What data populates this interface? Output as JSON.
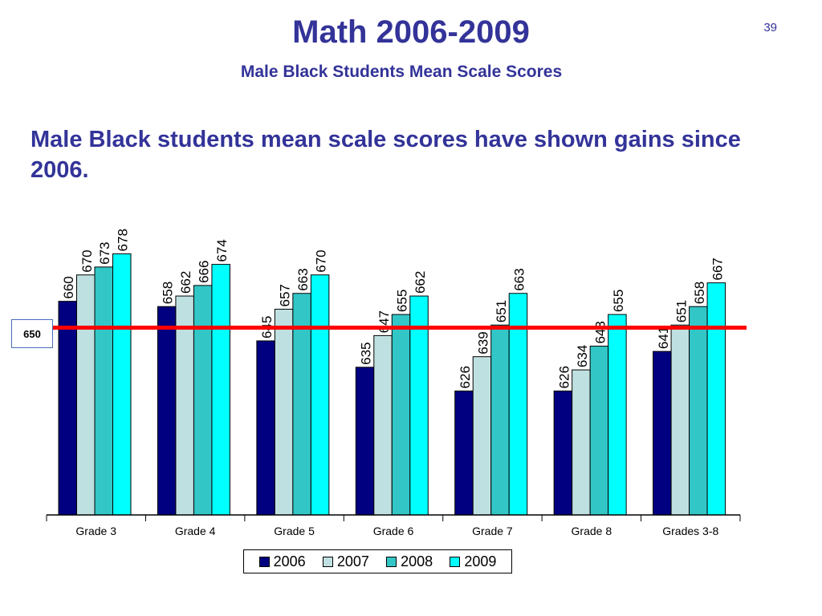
{
  "slide": {
    "title": "Math 2006-2009",
    "subtitle": "Male Black Students Mean Scale Scores",
    "number": "39",
    "headline": "Male Black students mean scale scores have shown gains since 2006."
  },
  "chart_data": {
    "type": "bar",
    "title": "",
    "xlabel": "",
    "ylabel": "",
    "categories": [
      "Grade 3",
      "Grade 4",
      "Grade 5",
      "Grade 6",
      "Grade 7",
      "Grade 8",
      "Grades 3-8"
    ],
    "series": [
      {
        "name": "2006",
        "color": "#000080",
        "values": [
          660,
          658,
          645,
          635,
          626,
          626,
          641
        ]
      },
      {
        "name": "2007",
        "color": "#bfe0e0",
        "values": [
          670,
          662,
          657,
          647,
          639,
          634,
          651
        ]
      },
      {
        "name": "2008",
        "color": "#33c6c6",
        "values": [
          673,
          666,
          663,
          655,
          651,
          643,
          658
        ]
      },
      {
        "name": "2009",
        "color": "#00ffff",
        "values": [
          678,
          674,
          670,
          662,
          663,
          655,
          667
        ]
      }
    ],
    "ylim": [
      579,
      683
    ],
    "reference_line": {
      "value": 650,
      "label": "650",
      "color": "#ff0000"
    },
    "legend": "bottom",
    "grid": false
  }
}
